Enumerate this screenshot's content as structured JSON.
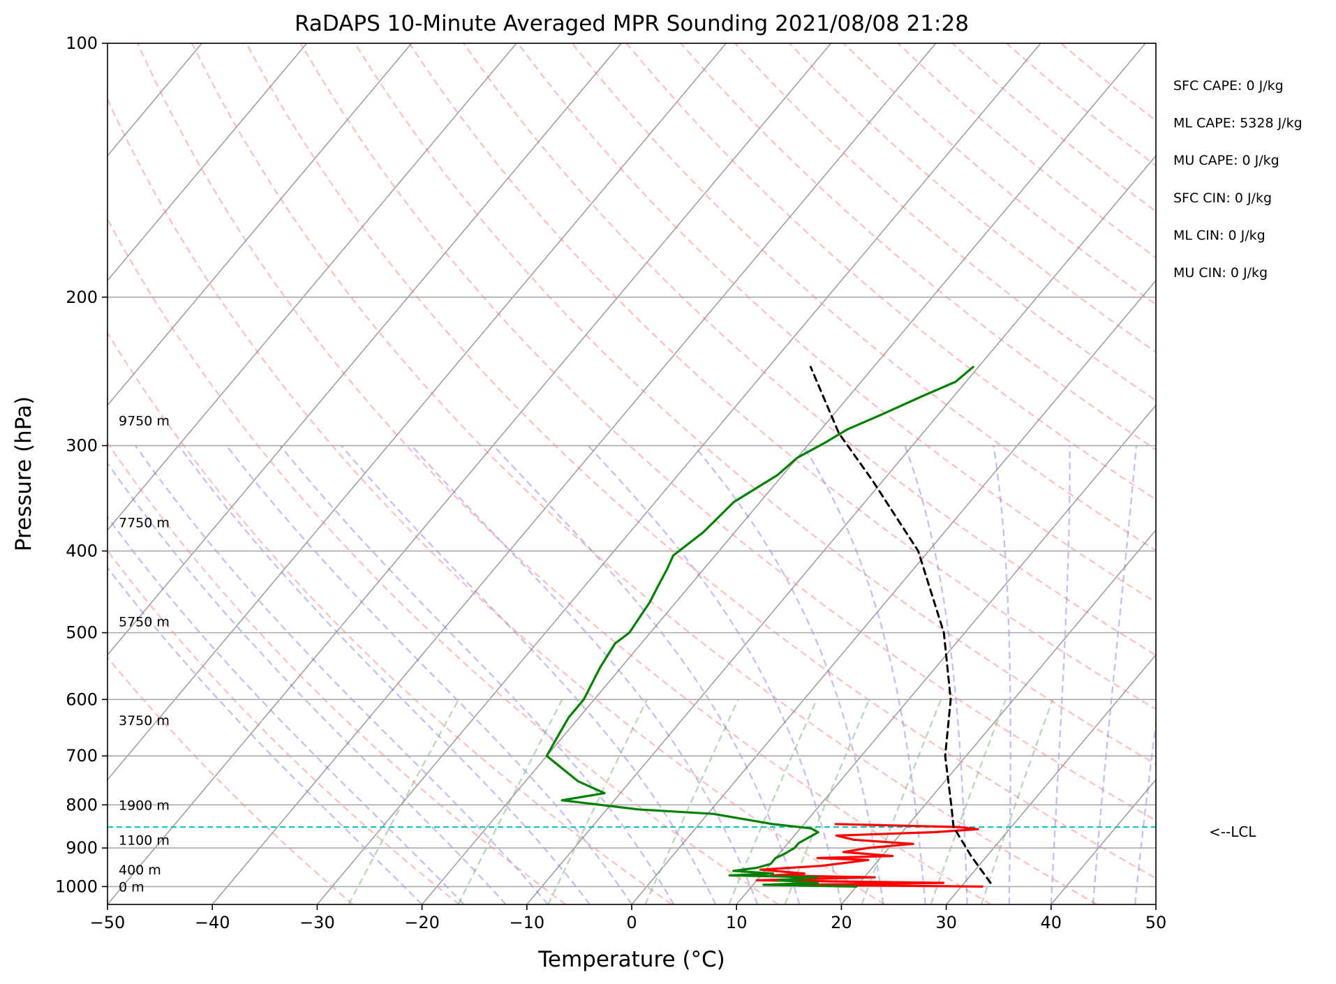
{
  "chart_data": {
    "type": "line",
    "title": "RaDAPS 10-Minute Averaged MPR Sounding 2021/08/08 21:28",
    "xlabel": "Temperature (°C)",
    "ylabel": "Pressure (hPa)",
    "xlim": [
      -50,
      50
    ],
    "ylim": [
      1050,
      100
    ],
    "y_scale": "log",
    "x_ticks": [
      "−50",
      "−40",
      "−30",
      "−20",
      "−10",
      "0",
      "10",
      "20",
      "30",
      "40",
      "50"
    ],
    "y_ticks": [
      {
        "p": 100,
        "label": "100"
      },
      {
        "p": 200,
        "label": "200"
      },
      {
        "p": 300,
        "label": "300"
      },
      {
        "p": 400,
        "label": "400"
      },
      {
        "p": 500,
        "label": "500"
      },
      {
        "p": 600,
        "label": "600"
      },
      {
        "p": 700,
        "label": "700"
      },
      {
        "p": 800,
        "label": "800"
      },
      {
        "p": 900,
        "label": "900"
      },
      {
        "p": 1000,
        "label": "1000"
      }
    ],
    "height_labels": [
      {
        "p": 1000,
        "label": "0 m"
      },
      {
        "p": 955,
        "label": "400 m"
      },
      {
        "p": 880,
        "label": "1100 m"
      },
      {
        "p": 800,
        "label": "1900 m"
      },
      {
        "p": 635,
        "label": "3750 m"
      },
      {
        "p": 485,
        "label": "5750 m"
      },
      {
        "p": 370,
        "label": "7750 m"
      },
      {
        "p": 280,
        "label": "9750 m"
      }
    ],
    "annotations": [
      "SFC CAPE: 0 J/kg",
      "ML CAPE: 5328 J/kg",
      "MU CAPE: 0 J/kg",
      "SFC CIN: 0 J/kg",
      "ML CIN: 0 J/kg",
      "MU CIN: 0 J/kg"
    ],
    "lcl": {
      "p": 850,
      "label": "<--LCL"
    },
    "skew_px_per_decade": 1015,
    "series": [
      {
        "color": "#ff0000",
        "style": "solid",
        "points": [
          [
            1000,
            32
          ],
          [
            995,
            14.5
          ],
          [
            990,
            28
          ],
          [
            983,
            10
          ],
          [
            975,
            21
          ],
          [
            970,
            11
          ],
          [
            965,
            14
          ],
          [
            955,
            9.5
          ],
          [
            945,
            15
          ],
          [
            930,
            19
          ],
          [
            925,
            14
          ],
          [
            920,
            21
          ],
          [
            910,
            16
          ],
          [
            900,
            18
          ],
          [
            890,
            22
          ],
          [
            880,
            16
          ],
          [
            870,
            14
          ],
          [
            862,
            23
          ],
          [
            855,
            27
          ],
          [
            850,
            25
          ],
          [
            843,
            13
          ]
        ]
      },
      {
        "color": "#008000",
        "style": "solid",
        "points": [
          [
            1000,
            20
          ],
          [
            995,
            11
          ],
          [
            990,
            16
          ],
          [
            983,
            12
          ],
          [
            975,
            15.5
          ],
          [
            970,
            7
          ],
          [
            965,
            11
          ],
          [
            958,
            7
          ],
          [
            950,
            9
          ],
          [
            940,
            10
          ],
          [
            925,
            10
          ],
          [
            915,
            10.5
          ],
          [
            900,
            11
          ],
          [
            888,
            11
          ],
          [
            875,
            11.5
          ],
          [
            862,
            12
          ],
          [
            853,
            11
          ],
          [
            843,
            7
          ],
          [
            820,
            0.5
          ],
          [
            810,
            -7
          ],
          [
            790,
            -15
          ],
          [
            775,
            -11.5
          ],
          [
            750,
            -15
          ],
          [
            700,
            -20
          ],
          [
            665,
            -20.5
          ],
          [
            630,
            -21
          ],
          [
            600,
            -21
          ],
          [
            550,
            -22
          ],
          [
            515,
            -22.5
          ],
          [
            500,
            -22
          ],
          [
            460,
            -22.5
          ],
          [
            440,
            -23
          ],
          [
            420,
            -23.5
          ],
          [
            405,
            -24
          ],
          [
            380,
            -23
          ],
          [
            350,
            -22.5
          ],
          [
            325,
            -20.5
          ],
          [
            310,
            -20
          ],
          [
            297,
            -18.5
          ],
          [
            287,
            -17.5
          ],
          [
            276,
            -15.5
          ],
          [
            262,
            -13
          ],
          [
            252,
            -11
          ],
          [
            242,
            -10.5
          ]
        ]
      },
      {
        "color": "#000000",
        "style": "dashed",
        "points": [
          [
            990,
            32.5
          ],
          [
            920,
            28.5
          ],
          [
            850,
            24.5
          ],
          [
            800,
            22.5
          ],
          [
            700,
            18
          ],
          [
            600,
            14
          ],
          [
            500,
            8
          ],
          [
            400,
            -1
          ],
          [
            330,
            -11
          ],
          [
            290,
            -18
          ],
          [
            242,
            -26
          ]
        ]
      }
    ],
    "background_lines": {
      "isotherm_color": "#808080",
      "dry_adiabat_color": "#ff6666",
      "moist_adiabat_color": "#6666ee",
      "mixing_ratio_color": "#66aa66",
      "lcl_color": "#00bfbf"
    }
  }
}
